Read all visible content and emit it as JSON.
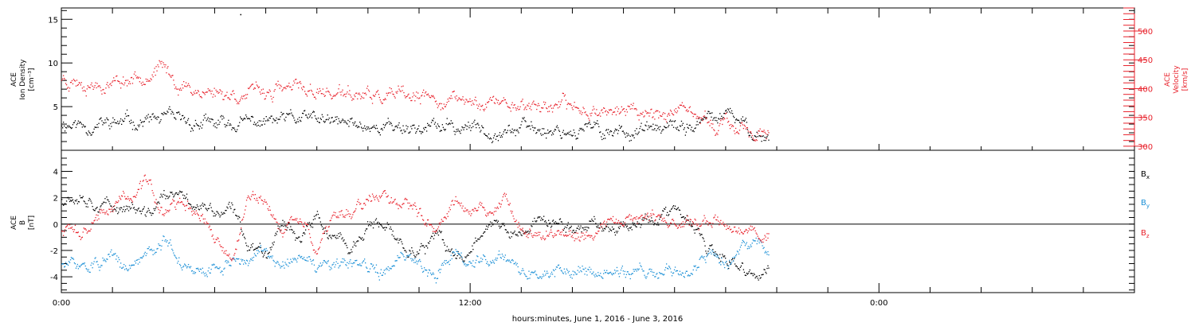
{
  "chart_data": [
    {
      "type": "scatter",
      "panel": "top",
      "ylabel": [
        "ACE",
        "Ion Density",
        "[cm⁻³]"
      ],
      "ylabel_right": [
        "ACE",
        "Velocity",
        "[km/s]"
      ],
      "ylim": [
        0,
        16.3
      ],
      "ylim_right": [
        293,
        540
      ],
      "yticks": [
        5,
        10,
        15
      ],
      "yticks_right": [
        300,
        350,
        400,
        450,
        500
      ],
      "colors": {
        "density": "#000000",
        "velocity": "#e8212b"
      },
      "series": [
        {
          "axis": "left",
          "x": [
            0,
            1,
            2,
            3,
            4,
            5,
            6,
            7,
            8,
            9,
            10,
            11,
            12,
            13,
            14,
            15,
            16,
            17,
            18,
            19,
            20,
            21,
            22,
            23,
            24,
            25,
            26,
            27,
            28,
            29,
            30,
            31,
            32,
            33,
            34,
            35,
            36,
            37,
            38,
            39,
            40,
            41,
            41.5
          ],
          "values": [
            3.2,
            3.0,
            2.9,
            3.1,
            3.3,
            3.5,
            3.6,
            3.2,
            3.1,
            2.9,
            3.0,
            3.2,
            3.3,
            3.4,
            3.6,
            3.5,
            3.1,
            3.0,
            2.9,
            2.8,
            2.8,
            2.7,
            2.7,
            2.6,
            2.6,
            2.6,
            2.5,
            2.5,
            2.5,
            2.4,
            2.4,
            2.4,
            2.3,
            2.3,
            2.3,
            2.3,
            2.4,
            2.8,
            3.5,
            4.0,
            3.0,
            1.8,
            1.5
          ]
        },
        {
          "axis": "right",
          "x": [
            0,
            1,
            2,
            3,
            4,
            5,
            6,
            7,
            8,
            9,
            10,
            11,
            12,
            13,
            14,
            15,
            16,
            17,
            18,
            19,
            20,
            21,
            22,
            23,
            24,
            25,
            26,
            27,
            28,
            29,
            30,
            31,
            32,
            33,
            34,
            35,
            36,
            37,
            38,
            39,
            40,
            41,
            41.5
          ],
          "values": [
            420,
            415,
            410,
            412,
            418,
            430,
            435,
            405,
            398,
            395,
            392,
            390,
            395,
            398,
            400,
            396,
            392,
            388,
            386,
            385,
            384,
            382,
            381,
            380,
            378,
            377,
            376,
            374,
            372,
            370,
            368,
            366,
            364,
            363,
            362,
            360,
            358,
            350,
            342,
            337,
            333,
            322,
            312
          ]
        }
      ],
      "outliers": [
        {
          "x": 10.5,
          "y": 15.6,
          "axis": "left"
        }
      ]
    },
    {
      "type": "scatter",
      "panel": "bottom",
      "ylabel": [
        "ACE",
        "B",
        "[nT]"
      ],
      "ylim": [
        -5.2,
        5.6
      ],
      "yticks": [
        -4,
        -2,
        0,
        2,
        4
      ],
      "colors": {
        "Bx": "#000000",
        "By": "#1a8fd6",
        "Bz": "#e8212b"
      },
      "legend": [
        {
          "label": "B",
          "sub": "x",
          "key": "Bx"
        },
        {
          "label": "B",
          "sub": "y",
          "key": "By"
        },
        {
          "label": "B",
          "sub": "z",
          "key": "Bz"
        }
      ],
      "legend_placement": "right",
      "series": [
        {
          "key": "Bx",
          "x": [
            0,
            1,
            2,
            3,
            4,
            5,
            6,
            7,
            8,
            9,
            10,
            11,
            12,
            13,
            14,
            15,
            16,
            17,
            18,
            19,
            20,
            21,
            22,
            23,
            24,
            25,
            26,
            27,
            28,
            29,
            30,
            31,
            32,
            33,
            34,
            35,
            36,
            37,
            38,
            39,
            40,
            41,
            41.5
          ],
          "values": [
            2.0,
            2.5,
            1.8,
            1.2,
            1.5,
            0.5,
            2.2,
            2.0,
            1.5,
            0.8,
            1.0,
            -1.5,
            -2.0,
            0.5,
            -1.0,
            0.5,
            -1.2,
            -2.0,
            0.0,
            -0.5,
            -1.5,
            -2.0,
            -1.0,
            -2.5,
            -2.0,
            0.5,
            -0.5,
            -1.0,
            0.5,
            0.0,
            -0.5,
            0.2,
            -0.2,
            0.0,
            0.3,
            0.5,
            1.0,
            -0.2,
            -2.0,
            -3.0,
            -3.5,
            -4.0,
            -3.5
          ]
        },
        {
          "key": "By",
          "x": [
            0,
            1,
            2,
            3,
            4,
            5,
            6,
            7,
            8,
            9,
            10,
            11,
            12,
            13,
            14,
            15,
            16,
            17,
            18,
            19,
            20,
            21,
            22,
            23,
            24,
            25,
            26,
            27,
            28,
            29,
            30,
            31,
            32,
            33,
            34,
            35,
            36,
            37,
            38,
            39,
            40,
            41,
            41.5
          ],
          "values": [
            -3.0,
            -3.2,
            -3.0,
            -2.8,
            -3.5,
            -2.0,
            -1.0,
            -3.0,
            -3.8,
            -3.5,
            -2.5,
            -2.7,
            -2.2,
            -3.0,
            -2.5,
            -3.5,
            -3.3,
            -3.0,
            -3.5,
            -3.5,
            -2.5,
            -3.0,
            -3.6,
            -2.0,
            -3.0,
            -2.5,
            -2.0,
            -3.5,
            -3.8,
            -3.6,
            -3.5,
            -3.5,
            -3.6,
            -3.7,
            -3.6,
            -3.5,
            -3.6,
            -3.5,
            -2.0,
            -3.0,
            -2.0,
            -1.2,
            -2.5
          ]
        },
        {
          "key": "Bz",
          "x": [
            0,
            1,
            2,
            3,
            4,
            5,
            6,
            7,
            8,
            9,
            10,
            11,
            12,
            13,
            14,
            15,
            16,
            17,
            18,
            19,
            20,
            21,
            22,
            23,
            24,
            25,
            26,
            27,
            28,
            29,
            30,
            31,
            32,
            33,
            34,
            35,
            36,
            37,
            38,
            39,
            40,
            41,
            41.5
          ],
          "values": [
            -0.5,
            -0.8,
            0.5,
            1.5,
            2.0,
            3.0,
            1.0,
            1.5,
            0.8,
            -1.0,
            -2.5,
            2.0,
            1.5,
            -0.5,
            0.5,
            -2.0,
            0.8,
            1.0,
            2.0,
            2.5,
            1.5,
            1.0,
            -0.5,
            2.0,
            1.5,
            0.5,
            2.5,
            -0.8,
            -0.5,
            -1.0,
            -1.2,
            -0.5,
            0.3,
            0.5,
            0.3,
            0.5,
            0.2,
            0.0,
            0.0,
            -0.2,
            -0.5,
            -0.6,
            -0.6
          ]
        }
      ]
    }
  ],
  "x_axis": {
    "xlim": [
      0,
      63
    ],
    "tick_labels": [
      {
        "x": 0,
        "label": "0:00"
      },
      {
        "x": 24,
        "label": "12:00"
      },
      {
        "x": 48,
        "label": "0:00"
      }
    ],
    "xlabel": "hours:minutes, June  1, 2016 - June  3, 2016"
  }
}
